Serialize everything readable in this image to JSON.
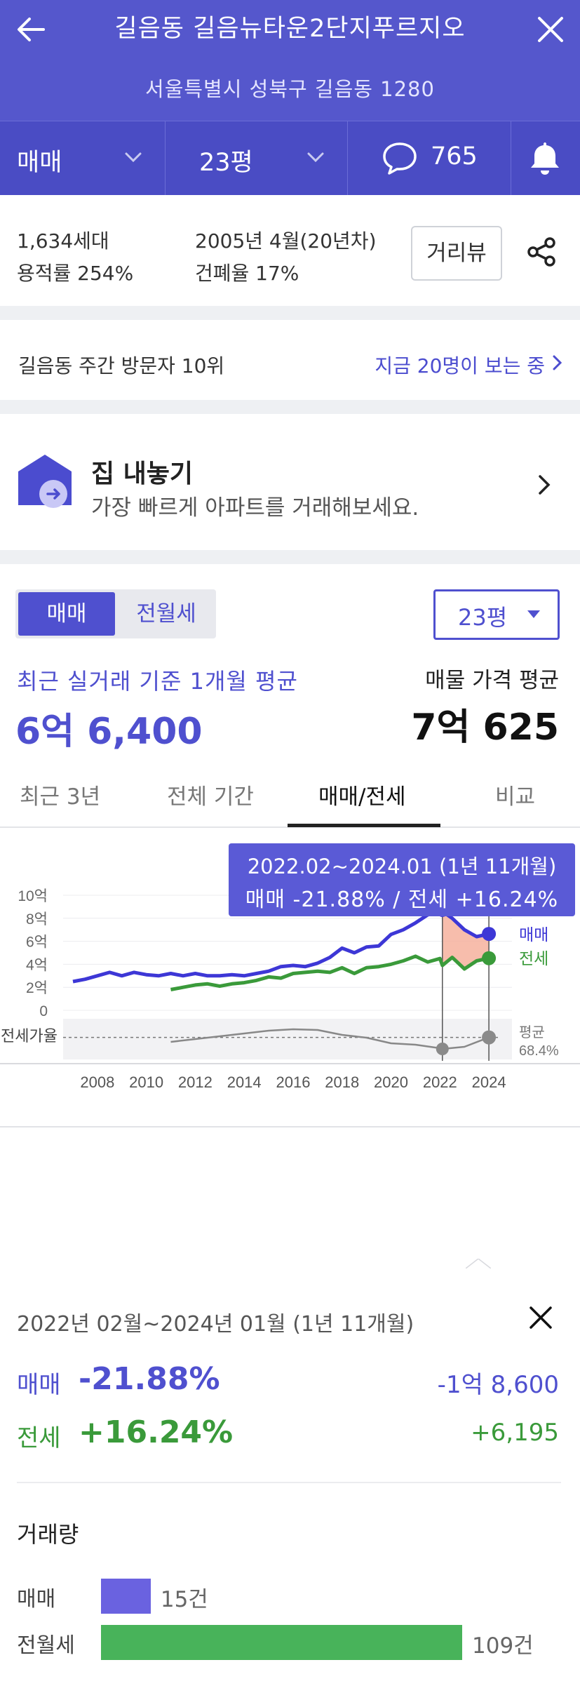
{
  "header": {
    "title": "길음동 길음뉴타운2단지푸르지오",
    "address": "서울특별시 성북구 길음동 1280",
    "trade_type": "매매",
    "size": "23평",
    "comments": "765"
  },
  "info": {
    "households": "1,634세대",
    "floor_area_ratio": "용적률 254%",
    "built": "2005년 4월(20년차)",
    "building_coverage": "건폐율 17%",
    "street_view_label": "거리뷰"
  },
  "visits": {
    "rank": "길음동 주간 방문자 10위",
    "viewing_now": "지금 20명이 보는 중"
  },
  "sell": {
    "title": "집 내놓기",
    "subtitle": "가장 빠르게 아파트를 거래해보세요."
  },
  "main": {
    "seg_active": "매매",
    "seg_other": "전월세",
    "size_select": "23평",
    "recent_label": "최근 실거래 기준 1개월 평균",
    "recent_value": "6억 6,400",
    "ask_label": "매물 가격 평균",
    "ask_value": "7억 625",
    "tabs": [
      "최근 3년",
      "전체 기간",
      "매매/전세",
      "비교"
    ],
    "active_tab": "매매/전세"
  },
  "tooltip": {
    "range": "2022.02~2024.01 (1년 11개월)",
    "change": "매매 -21.88%  /  전세 +16.24%"
  },
  "chart_data": {
    "type": "line",
    "x_ticks": [
      "2008",
      "2010",
      "2012",
      "2014",
      "2016",
      "2018",
      "2020",
      "2022",
      "2024"
    ],
    "y_ticks": [
      "10억",
      "8억",
      "6억",
      "4억",
      "2억",
      "0"
    ],
    "ylim": [
      0,
      10
    ],
    "ratio_label": "전세가율",
    "ratio_avg_label": "평균",
    "ratio_avg_value": "68.4%",
    "highlight": [
      "2022.02",
      "2024.01"
    ],
    "series": [
      {
        "name": "매매",
        "color": "#3d37d6",
        "x": [
          2007.0,
          2007.5,
          2008.0,
          2008.5,
          2009.0,
          2009.5,
          2010.0,
          2010.5,
          2011.0,
          2011.5,
          2012.0,
          2012.5,
          2013.0,
          2013.5,
          2014.0,
          2014.5,
          2015.0,
          2015.5,
          2016.0,
          2016.5,
          2017.0,
          2017.5,
          2018.0,
          2018.5,
          2019.0,
          2019.5,
          2020.0,
          2020.5,
          2021.0,
          2021.5,
          2022.0,
          2022.1,
          2022.5,
          2023.0,
          2023.5,
          2024.0
        ],
        "values": [
          2.5,
          2.7,
          3.0,
          3.3,
          3.0,
          3.3,
          3.1,
          3.0,
          3.2,
          3.0,
          3.2,
          3.0,
          3.0,
          3.1,
          3.0,
          3.2,
          3.4,
          3.8,
          3.9,
          3.8,
          4.1,
          4.6,
          5.4,
          5.0,
          5.5,
          5.6,
          6.6,
          7.0,
          7.6,
          8.3,
          8.5,
          8.6,
          8.0,
          7.0,
          6.4,
          6.64
        ]
      },
      {
        "name": "전세",
        "color": "#3a9a3a",
        "x": [
          2011.0,
          2011.5,
          2012.0,
          2012.5,
          2013.0,
          2013.5,
          2014.0,
          2014.5,
          2015.0,
          2015.5,
          2016.0,
          2016.5,
          2017.0,
          2017.5,
          2018.0,
          2018.5,
          2019.0,
          2019.5,
          2020.0,
          2020.5,
          2021.0,
          2021.5,
          2022.0,
          2022.1,
          2022.5,
          2023.0,
          2023.5,
          2024.0
        ],
        "values": [
          1.8,
          2.0,
          2.2,
          2.3,
          2.1,
          2.3,
          2.4,
          2.6,
          2.9,
          2.8,
          3.2,
          3.3,
          3.4,
          3.3,
          3.7,
          3.2,
          3.7,
          3.8,
          4.0,
          4.3,
          4.7,
          4.2,
          4.5,
          3.9,
          4.6,
          3.6,
          4.3,
          4.53
        ]
      },
      {
        "name": "전세가율",
        "color": "#888888",
        "x": [
          2011.0,
          2012.0,
          2013.0,
          2014.0,
          2015.0,
          2016.0,
          2017.0,
          2018.0,
          2019.0,
          2020.0,
          2021.0,
          2022.0,
          2022.1,
          2023.0,
          2024.0
        ],
        "values": [
          62,
          66,
          70,
          74,
          78,
          80,
          79,
          72,
          68,
          60,
          58,
          53,
          52,
          55,
          68.4
        ]
      }
    ]
  },
  "detail": {
    "range": "2022년 02월~2024년 01월 (1년 11개월)",
    "sale_label": "매매",
    "sale_pct": "-21.88%",
    "sale_amount": "-1억 8,600",
    "jeonse_label": "전세",
    "jeonse_pct": "+16.24%",
    "jeonse_amount": "+6,195",
    "volume_title": "거래량",
    "volume": [
      {
        "label": "매매",
        "count": 15,
        "text": "15건",
        "color": "#6a62e0"
      },
      {
        "label": "전월세",
        "count": 109,
        "text": "109건",
        "color": "#48b35a"
      }
    ]
  }
}
